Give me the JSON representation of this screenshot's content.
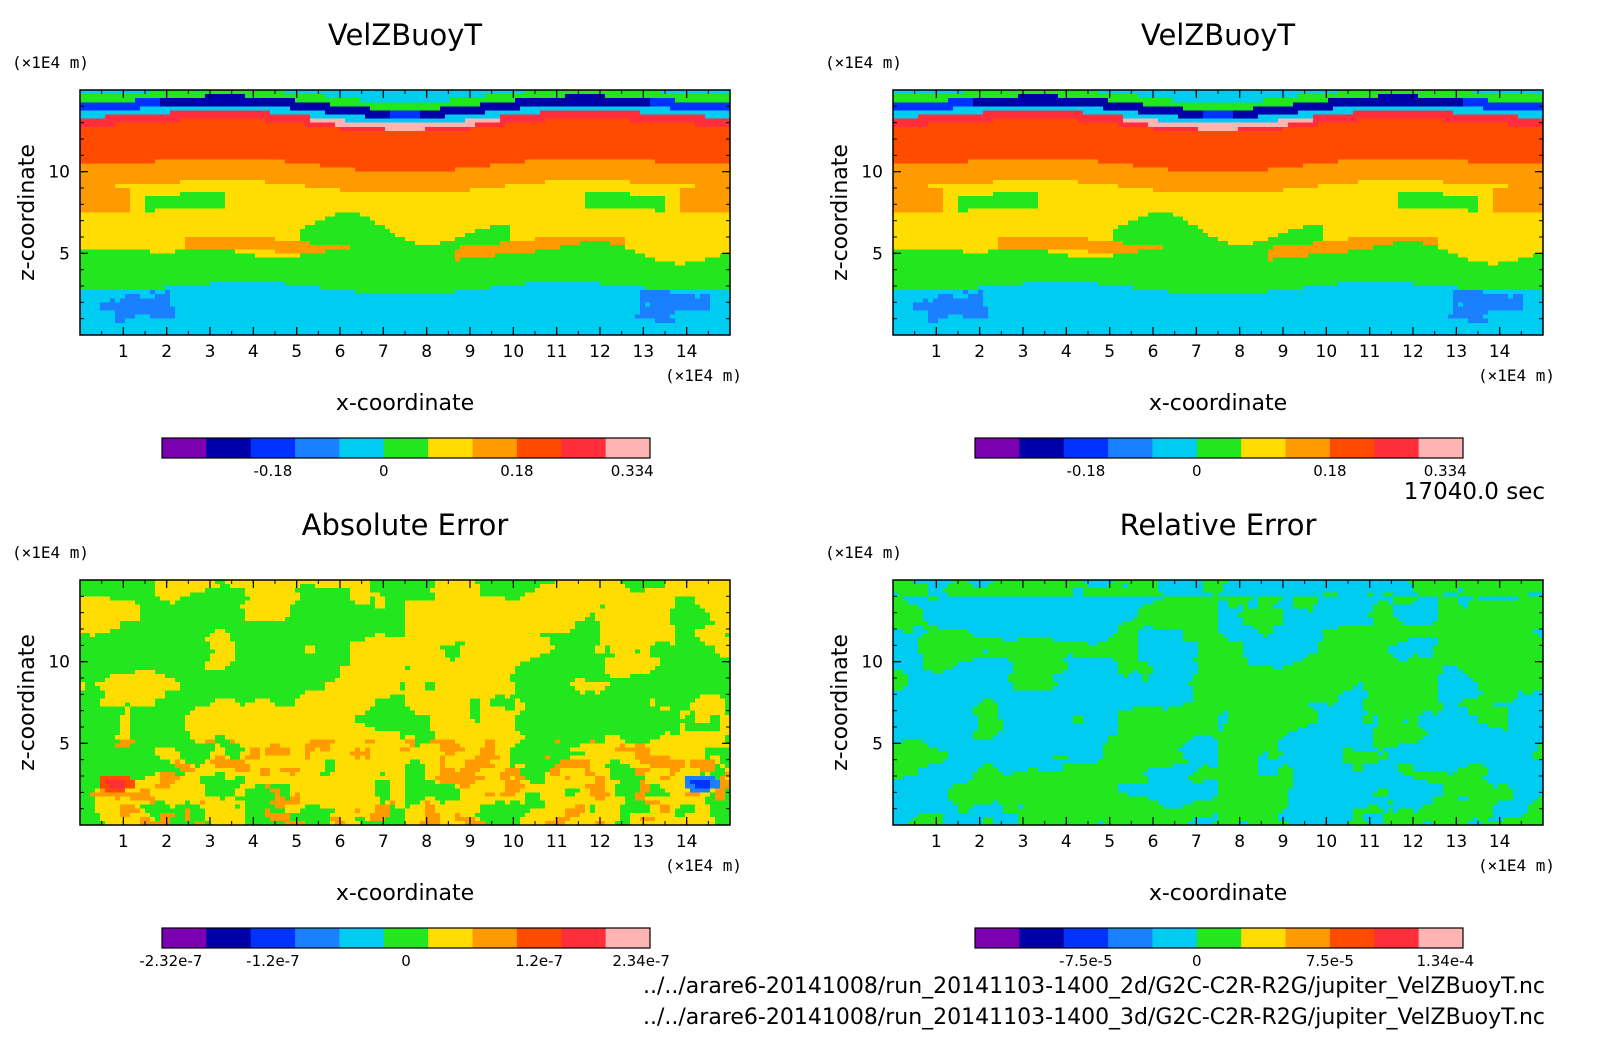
{
  "time_label": "17040.0 sec",
  "files": [
    "../../arare6-20141008/run_20141103-1400_2d/G2C-C2R-R2G/jupiter_VelZBuoyT.nc",
    "../../arare6-20141008/run_20141103-1400_3d/G2C-C2R-R2G/jupiter_VelZBuoyT.nc"
  ],
  "palette": [
    "#7a00b0",
    "#0000a8",
    "#0033ff",
    "#1a80ff",
    "#00ccf2",
    "#22e61e",
    "#ffdd00",
    "#ff9a00",
    "#ff4a00",
    "#ff2e3a",
    "#ffb4b4"
  ],
  "chart_data": [
    {
      "type": "heatmap",
      "title": "VelZBuoyT",
      "xlabel": "x-coordinate",
      "ylabel": "z-coordinate",
      "x_unit": "(×1E4 m)",
      "y_unit": "(×1E4 m)",
      "xlim": [
        0,
        15
      ],
      "ylim": [
        0,
        15
      ],
      "xticks": [
        "1",
        "2",
        "3",
        "4",
        "5",
        "6",
        "7",
        "8",
        "9",
        "10",
        "11",
        "12",
        "13",
        "14"
      ],
      "yticks": [
        "5",
        "10"
      ],
      "pattern": "main",
      "colorbar": {
        "min": -0.18,
        "max": 0.334,
        "ticks": [
          "-0.18",
          "0",
          "0.18",
          "0.334"
        ]
      }
    },
    {
      "type": "heatmap",
      "title": "VelZBuoyT",
      "xlabel": "x-coordinate",
      "ylabel": "z-coordinate",
      "x_unit": "(×1E4 m)",
      "y_unit": "(×1E4 m)",
      "xlim": [
        0,
        15
      ],
      "ylim": [
        0,
        15
      ],
      "xticks": [
        "1",
        "2",
        "3",
        "4",
        "5",
        "6",
        "7",
        "8",
        "9",
        "10",
        "11",
        "12",
        "13",
        "14"
      ],
      "yticks": [
        "5",
        "10"
      ],
      "pattern": "main",
      "colorbar": {
        "min": -0.18,
        "max": 0.334,
        "ticks": [
          "-0.18",
          "0",
          "0.18",
          "0.334"
        ]
      }
    },
    {
      "type": "heatmap",
      "title": "Absolute Error",
      "xlabel": "x-coordinate",
      "ylabel": "z-coordinate",
      "x_unit": "(×1E4 m)",
      "y_unit": "(×1E4 m)",
      "xlim": [
        0,
        15
      ],
      "ylim": [
        0,
        15
      ],
      "xticks": [
        "1",
        "2",
        "3",
        "4",
        "5",
        "6",
        "7",
        "8",
        "9",
        "10",
        "11",
        "12",
        "13",
        "14"
      ],
      "yticks": [
        "5",
        "10"
      ],
      "pattern": "abs",
      "colorbar": {
        "min": -2.32e-07,
        "max": 2.34e-07,
        "ticks": [
          "-2.32e-7",
          "-1.2e-7",
          "0",
          "1.2e-7",
          "2.34e-7"
        ]
      }
    },
    {
      "type": "heatmap",
      "title": "Relative Error",
      "xlabel": "x-coordinate",
      "ylabel": "z-coordinate",
      "x_unit": "(×1E4 m)",
      "y_unit": "(×1E4 m)",
      "xlim": [
        0,
        15
      ],
      "ylim": [
        0,
        15
      ],
      "xticks": [
        "1",
        "2",
        "3",
        "4",
        "5",
        "6",
        "7",
        "8",
        "9",
        "10",
        "11",
        "12",
        "13",
        "14"
      ],
      "yticks": [
        "5",
        "10"
      ],
      "pattern": "rel",
      "colorbar": {
        "min": -7.5e-05,
        "max": 0.000134,
        "ticks": [
          "-7.5e-5",
          "0",
          "7.5e-5",
          "1.34e-4"
        ]
      }
    }
  ]
}
